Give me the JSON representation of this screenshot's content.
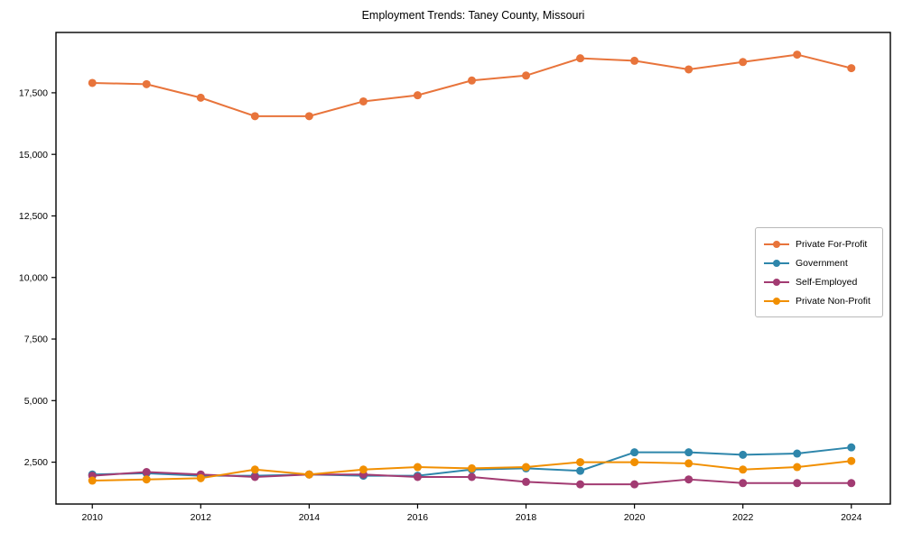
{
  "page": {
    "title": "Employment Trends: Taney County, Missouri"
  },
  "chart_data": {
    "type": "line",
    "title": "Employment Trends: Taney County, Missouri",
    "xlabel": "",
    "ylabel": "",
    "x": [
      2010,
      2011,
      2012,
      2013,
      2014,
      2015,
      2016,
      2017,
      2018,
      2019,
      2020,
      2021,
      2022,
      2023,
      2024
    ],
    "series": [
      {
        "name": "Private For-Profit",
        "color": "#E8743B",
        "values": [
          17900,
          17850,
          17300,
          16550,
          16550,
          17150,
          17400,
          18000,
          18200,
          18900,
          18800,
          18450,
          18750,
          19050,
          18500
        ]
      },
      {
        "name": "Government",
        "color": "#2E86AB",
        "values": [
          2000,
          2050,
          1950,
          1950,
          2000,
          1950,
          1950,
          2200,
          2250,
          2150,
          2900,
          2900,
          2800,
          2850,
          3100
        ]
      },
      {
        "name": "Self-Employed",
        "color": "#A23B72",
        "values": [
          1950,
          2100,
          2000,
          1900,
          2000,
          2000,
          1900,
          1900,
          1700,
          1600,
          1600,
          1800,
          1650,
          1650,
          1650
        ]
      },
      {
        "name": "Private Non-Profit",
        "color": "#F18F01",
        "values": [
          1750,
          1800,
          1850,
          2200,
          2000,
          2200,
          2300,
          2250,
          2300,
          2500,
          2500,
          2450,
          2200,
          2300,
          2550
        ]
      }
    ],
    "xticks": [
      2010,
      2012,
      2014,
      2016,
      2018,
      2020,
      2022,
      2024
    ],
    "yticks": [
      {
        "value": 2500,
        "label": "2,500"
      },
      {
        "value": 5000,
        "label": "5,000"
      },
      {
        "value": 7500,
        "label": "7,500"
      },
      {
        "value": 10000,
        "label": "10,000"
      },
      {
        "value": 12500,
        "label": "12,500"
      },
      {
        "value": 15000,
        "label": "15,000"
      },
      {
        "value": 17500,
        "label": "17,500"
      }
    ],
    "xlim": [
      2009.33,
      2024.72
    ],
    "ylim": [
      800,
      19950
    ],
    "grid": false,
    "legend_position": "center-right",
    "marker": "circle"
  }
}
